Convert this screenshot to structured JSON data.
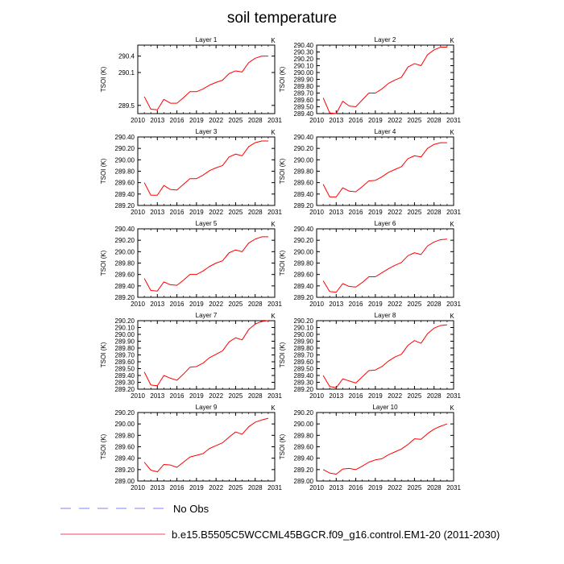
{
  "figure": {
    "title": "soil temperature",
    "legend": [
      {
        "label": "No Obs",
        "style": "dashed",
        "color": "#8080ff"
      },
      {
        "label": "b.e15.B5505C5WCCML45BGCR.f09_g16.control.EM1-20 (2011-2030)",
        "style": "solid",
        "color": "#ff4060"
      }
    ],
    "series_color": "#ff0000",
    "frame_color": "#000000"
  },
  "chart_data": [
    {
      "type": "line",
      "title": "Layer 1",
      "units": "K",
      "xlabel": "",
      "ylabel": "TSOI (K)",
      "xlim": [
        2010,
        2031
      ],
      "ylim": [
        289.35,
        290.6
      ],
      "xticks": [
        2010,
        2013,
        2016,
        2019,
        2022,
        2025,
        2028,
        2031
      ],
      "xticklabels": [
        "2010",
        "2013",
        "2016",
        "2019",
        "2022",
        "2025",
        "2028",
        "2031"
      ],
      "yticks": [
        289.5,
        290.1,
        290.4
      ],
      "yticklabels": [
        "289.5",
        "290.1",
        "290.4"
      ],
      "x": [
        2011,
        2012,
        2013,
        2014,
        2015,
        2016,
        2017,
        2018,
        2019,
        2020,
        2021,
        2022,
        2023,
        2024,
        2025,
        2026,
        2027,
        2028,
        2029,
        2030
      ],
      "series": [
        {
          "name": "b.e15.B5505C5WCCML45BGCR.f09_g16.control.EM1-20 (2011-2030)",
          "values": [
            289.66,
            289.43,
            289.42,
            289.61,
            289.54,
            289.54,
            289.64,
            289.75,
            289.75,
            289.8,
            289.87,
            289.92,
            289.96,
            290.08,
            290.13,
            290.11,
            290.28,
            290.36,
            290.4,
            290.4
          ]
        }
      ]
    },
    {
      "type": "line",
      "title": "Layer 2",
      "units": "K",
      "xlabel": "",
      "ylabel": "TSOI (K)",
      "xlim": [
        2010,
        2031
      ],
      "ylim": [
        289.4,
        290.4
      ],
      "xticks": [
        2010,
        2013,
        2016,
        2019,
        2022,
        2025,
        2028,
        2031
      ],
      "xticklabels": [
        "2010",
        "2013",
        "2016",
        "2019",
        "2022",
        "2025",
        "2028",
        "2031"
      ],
      "yticks": [
        289.4,
        289.5,
        289.6,
        289.7,
        289.8,
        289.9,
        290.0,
        290.1,
        290.2,
        290.3,
        290.4
      ],
      "yticklabels": [
        "289.40",
        "289.50",
        "289.60",
        "289.70",
        "289.80",
        "289.90",
        "290.00",
        "290.10",
        "290.20",
        "290.30",
        "290.40"
      ],
      "x": [
        2011,
        2012,
        2013,
        2014,
        2015,
        2016,
        2017,
        2018,
        2019,
        2020,
        2021,
        2022,
        2023,
        2024,
        2025,
        2026,
        2027,
        2028,
        2029,
        2030
      ],
      "series": [
        {
          "name": "b.e15.B5505C5WCCML45BGCR.f09_g16.control.EM1-20 (2011-2030)",
          "values": [
            289.63,
            289.41,
            289.4,
            289.58,
            289.51,
            289.5,
            289.6,
            289.7,
            289.7,
            289.76,
            289.84,
            289.89,
            289.93,
            290.08,
            290.13,
            290.1,
            290.26,
            290.33,
            290.37,
            290.37
          ]
        }
      ]
    },
    {
      "type": "line",
      "title": "Layer 3",
      "units": "K",
      "xlabel": "",
      "ylabel": "TSOI (K)",
      "xlim": [
        2010,
        2031
      ],
      "ylim": [
        289.2,
        290.4
      ],
      "xticks": [
        2010,
        2013,
        2016,
        2019,
        2022,
        2025,
        2028,
        2031
      ],
      "xticklabels": [
        "2010",
        "2013",
        "2016",
        "2019",
        "2022",
        "2025",
        "2028",
        "2031"
      ],
      "yticks": [
        289.2,
        289.4,
        289.6,
        289.8,
        290.0,
        290.2,
        290.4
      ],
      "yticklabels": [
        "289.20",
        "289.40",
        "289.60",
        "289.80",
        "290.00",
        "290.20",
        "290.40"
      ],
      "x": [
        2011,
        2012,
        2013,
        2014,
        2015,
        2016,
        2017,
        2018,
        2019,
        2020,
        2021,
        2022,
        2023,
        2024,
        2025,
        2026,
        2027,
        2028,
        2029,
        2030
      ],
      "series": [
        {
          "name": "b.e15.B5505C5WCCML45BGCR.f09_g16.control.EM1-20 (2011-2030)",
          "values": [
            289.6,
            289.38,
            289.38,
            289.55,
            289.48,
            289.47,
            289.57,
            289.67,
            289.67,
            289.73,
            289.81,
            289.86,
            289.9,
            290.05,
            290.1,
            290.07,
            290.23,
            290.3,
            290.33,
            290.33
          ]
        }
      ]
    },
    {
      "type": "line",
      "title": "Layer 4",
      "units": "K",
      "xlabel": "",
      "ylabel": "TSOI (K)",
      "xlim": [
        2010,
        2031
      ],
      "ylim": [
        289.2,
        290.4
      ],
      "xticks": [
        2010,
        2013,
        2016,
        2019,
        2022,
        2025,
        2028,
        2031
      ],
      "xticklabels": [
        "2010",
        "2013",
        "2016",
        "2019",
        "2022",
        "2025",
        "2028",
        "2031"
      ],
      "yticks": [
        289.2,
        289.4,
        289.6,
        289.8,
        290.0,
        290.2,
        290.4
      ],
      "yticklabels": [
        "289.20",
        "289.40",
        "289.60",
        "289.80",
        "290.00",
        "290.20",
        "290.40"
      ],
      "x": [
        2011,
        2012,
        2013,
        2014,
        2015,
        2016,
        2017,
        2018,
        2019,
        2020,
        2021,
        2022,
        2023,
        2024,
        2025,
        2026,
        2027,
        2028,
        2029,
        2030
      ],
      "series": [
        {
          "name": "b.e15.B5505C5WCCML45BGCR.f09_g16.control.EM1-20 (2011-2030)",
          "values": [
            289.57,
            289.35,
            289.35,
            289.51,
            289.45,
            289.44,
            289.53,
            289.63,
            289.64,
            289.7,
            289.78,
            289.83,
            289.88,
            290.02,
            290.07,
            290.05,
            290.2,
            290.27,
            290.3,
            290.3
          ]
        }
      ]
    },
    {
      "type": "line",
      "title": "Layer 5",
      "units": "K",
      "xlabel": "",
      "ylabel": "TSOI (K)",
      "xlim": [
        2010,
        2031
      ],
      "ylim": [
        289.2,
        290.4
      ],
      "xticks": [
        2010,
        2013,
        2016,
        2019,
        2022,
        2025,
        2028,
        2031
      ],
      "xticklabels": [
        "2010",
        "2013",
        "2016",
        "2019",
        "2022",
        "2025",
        "2028",
        "2031"
      ],
      "yticks": [
        289.2,
        289.4,
        289.6,
        289.8,
        290.0,
        290.2,
        290.4
      ],
      "yticklabels": [
        "289.20",
        "289.40",
        "289.60",
        "289.80",
        "290.00",
        "290.20",
        "290.40"
      ],
      "x": [
        2011,
        2012,
        2013,
        2014,
        2015,
        2016,
        2017,
        2018,
        2019,
        2020,
        2021,
        2022,
        2023,
        2024,
        2025,
        2026,
        2027,
        2028,
        2029,
        2030
      ],
      "series": [
        {
          "name": "b.e15.B5505C5WCCML45BGCR.f09_g16.control.EM1-20 (2011-2030)",
          "values": [
            289.53,
            289.32,
            289.31,
            289.47,
            289.42,
            289.41,
            289.5,
            289.6,
            289.6,
            289.66,
            289.74,
            289.8,
            289.84,
            289.98,
            290.03,
            290.0,
            290.15,
            290.22,
            290.26,
            290.26
          ]
        }
      ]
    },
    {
      "type": "line",
      "title": "Layer 6",
      "units": "K",
      "xlabel": "",
      "ylabel": "TSOI (K)",
      "xlim": [
        2010,
        2031
      ],
      "ylim": [
        289.2,
        290.4
      ],
      "xticks": [
        2010,
        2013,
        2016,
        2019,
        2022,
        2025,
        2028,
        2031
      ],
      "xticklabels": [
        "2010",
        "2013",
        "2016",
        "2019",
        "2022",
        "2025",
        "2028",
        "2031"
      ],
      "yticks": [
        289.2,
        289.4,
        289.6,
        289.8,
        290.0,
        290.2,
        290.4
      ],
      "yticklabels": [
        "289.20",
        "289.40",
        "289.60",
        "289.80",
        "290.00",
        "290.20",
        "290.40"
      ],
      "x": [
        2011,
        2012,
        2013,
        2014,
        2015,
        2016,
        2017,
        2018,
        2019,
        2020,
        2021,
        2022,
        2023,
        2024,
        2025,
        2026,
        2027,
        2028,
        2029,
        2030
      ],
      "series": [
        {
          "name": "b.e15.B5505C5WCCML45BGCR.f09_g16.control.EM1-20 (2011-2030)",
          "values": [
            289.49,
            289.3,
            289.29,
            289.44,
            289.39,
            289.38,
            289.46,
            289.56,
            289.56,
            289.63,
            289.7,
            289.76,
            289.81,
            289.93,
            289.98,
            289.95,
            290.1,
            290.17,
            290.21,
            290.22
          ]
        }
      ]
    },
    {
      "type": "line",
      "title": "Layer 7",
      "units": "K",
      "xlabel": "",
      "ylabel": "TSOI (K)",
      "xlim": [
        2010,
        2031
      ],
      "ylim": [
        289.2,
        290.2
      ],
      "xticks": [
        2010,
        2013,
        2016,
        2019,
        2022,
        2025,
        2028,
        2031
      ],
      "xticklabels": [
        "2010",
        "2013",
        "2016",
        "2019",
        "2022",
        "2025",
        "2028",
        "2031"
      ],
      "yticks": [
        289.2,
        289.3,
        289.4,
        289.5,
        289.6,
        289.7,
        289.8,
        289.9,
        290.0,
        290.1,
        290.2
      ],
      "yticklabels": [
        "289.20",
        "289.30",
        "289.40",
        "289.50",
        "289.60",
        "289.70",
        "289.80",
        "289.90",
        "290.00",
        "290.10",
        "290.20"
      ],
      "x": [
        2011,
        2012,
        2013,
        2014,
        2015,
        2016,
        2017,
        2018,
        2019,
        2020,
        2021,
        2022,
        2023,
        2024,
        2025,
        2026,
        2027,
        2028,
        2029,
        2030
      ],
      "series": [
        {
          "name": "b.e15.B5505C5WCCML45BGCR.f09_g16.control.EM1-20 (2011-2030)",
          "values": [
            289.45,
            289.26,
            289.25,
            289.4,
            289.36,
            289.33,
            289.42,
            289.52,
            289.53,
            289.58,
            289.66,
            289.71,
            289.76,
            289.89,
            289.95,
            289.92,
            290.07,
            290.15,
            290.19,
            290.2
          ]
        }
      ]
    },
    {
      "type": "line",
      "title": "Layer 8",
      "units": "K",
      "xlabel": "",
      "ylabel": "TSOI (K)",
      "xlim": [
        2010,
        2031
      ],
      "ylim": [
        289.2,
        290.2
      ],
      "xticks": [
        2010,
        2013,
        2016,
        2019,
        2022,
        2025,
        2028,
        2031
      ],
      "xticklabels": [
        "2010",
        "2013",
        "2016",
        "2019",
        "2022",
        "2025",
        "2028",
        "2031"
      ],
      "yticks": [
        289.2,
        289.3,
        289.4,
        289.5,
        289.6,
        289.7,
        289.8,
        289.9,
        290.0,
        290.1,
        290.2
      ],
      "yticklabels": [
        "289.20",
        "289.30",
        "289.40",
        "289.50",
        "289.60",
        "289.70",
        "289.80",
        "289.90",
        "290.00",
        "290.10",
        "290.20"
      ],
      "x": [
        2011,
        2012,
        2013,
        2014,
        2015,
        2016,
        2017,
        2018,
        2019,
        2020,
        2021,
        2022,
        2023,
        2024,
        2025,
        2026,
        2027,
        2028,
        2029,
        2030
      ],
      "series": [
        {
          "name": "b.e15.B5505C5WCCML45BGCR.f09_g16.control.EM1-20 (2011-2030)",
          "values": [
            289.4,
            289.24,
            289.22,
            289.35,
            289.32,
            289.29,
            289.38,
            289.47,
            289.48,
            289.53,
            289.61,
            289.67,
            289.71,
            289.84,
            289.91,
            289.87,
            290.01,
            290.09,
            290.13,
            290.14
          ]
        }
      ]
    },
    {
      "type": "line",
      "title": "Layer 9",
      "units": "K",
      "xlabel": "",
      "ylabel": "TSOI (K)",
      "xlim": [
        2010,
        2031
      ],
      "ylim": [
        289.0,
        290.2
      ],
      "xticks": [
        2010,
        2013,
        2016,
        2019,
        2022,
        2025,
        2028,
        2031
      ],
      "xticklabels": [
        "2010",
        "2013",
        "2016",
        "2019",
        "2022",
        "2025",
        "2028",
        "2031"
      ],
      "yticks": [
        289.0,
        289.2,
        289.4,
        289.6,
        289.8,
        290.0,
        290.2
      ],
      "yticklabels": [
        "289.00",
        "289.20",
        "289.40",
        "289.60",
        "289.80",
        "290.00",
        "290.20"
      ],
      "x": [
        2011,
        2012,
        2013,
        2014,
        2015,
        2016,
        2017,
        2018,
        2019,
        2020,
        2021,
        2022,
        2023,
        2024,
        2025,
        2026,
        2027,
        2028,
        2029,
        2030
      ],
      "series": [
        {
          "name": "b.e15.B5505C5WCCML45BGCR.f09_g16.control.EM1-20 (2011-2030)",
          "values": [
            289.33,
            289.19,
            289.16,
            289.29,
            289.28,
            289.24,
            289.33,
            289.42,
            289.45,
            289.48,
            289.57,
            289.62,
            289.67,
            289.77,
            289.86,
            289.82,
            289.95,
            290.03,
            290.07,
            290.1
          ]
        }
      ]
    },
    {
      "type": "line",
      "title": "Layer 10",
      "units": "K",
      "xlabel": "",
      "ylabel": "TSOI (K)",
      "xlim": [
        2010,
        2031
      ],
      "ylim": [
        289.0,
        290.2
      ],
      "xticks": [
        2010,
        2013,
        2016,
        2019,
        2022,
        2025,
        2028,
        2031
      ],
      "xticklabels": [
        "2010",
        "2013",
        "2016",
        "2019",
        "2022",
        "2025",
        "2028",
        "2031"
      ],
      "yticks": [
        289.0,
        289.2,
        289.4,
        289.6,
        289.8,
        290.0,
        290.2
      ],
      "yticklabels": [
        "289.00",
        "289.20",
        "289.40",
        "289.60",
        "289.80",
        "290.00",
        "290.20"
      ],
      "x": [
        2011,
        2012,
        2013,
        2014,
        2015,
        2016,
        2017,
        2018,
        2019,
        2020,
        2021,
        2022,
        2023,
        2024,
        2025,
        2026,
        2027,
        2028,
        2029,
        2030
      ],
      "series": [
        {
          "name": "b.e15.B5505C5WCCML45BGCR.f09_g16.control.EM1-20 (2011-2030)",
          "values": [
            289.2,
            289.14,
            289.12,
            289.21,
            289.22,
            289.2,
            289.26,
            289.33,
            289.37,
            289.39,
            289.46,
            289.51,
            289.56,
            289.64,
            289.74,
            289.73,
            289.83,
            289.91,
            289.96,
            290.0
          ]
        }
      ]
    }
  ]
}
